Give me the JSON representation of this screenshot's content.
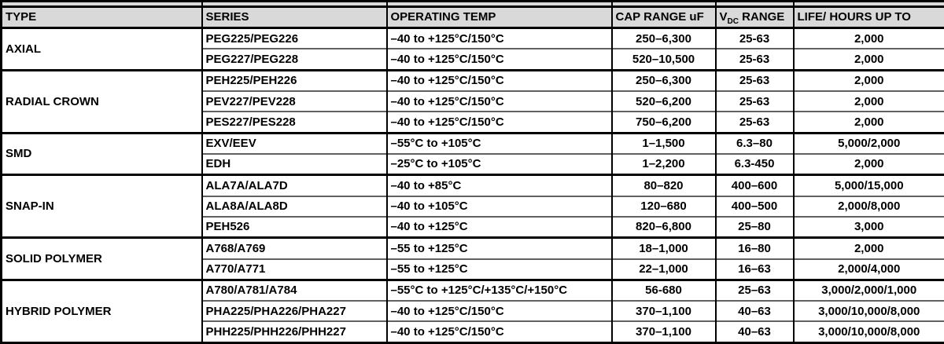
{
  "table": {
    "headers": {
      "type": "TYPE",
      "series": "SERIES",
      "temp": "OPERATING TEMP",
      "cap": "CAP RANGE uF",
      "vdc": {
        "prefix": "V",
        "sub": "DC",
        "suffix": " RANGE"
      },
      "life": "LIFE/ HOURS UP TO"
    },
    "colors": {
      "header_bg": "#d9d9d9",
      "border": "#000000",
      "row_divider": "#616161"
    },
    "groups": [
      {
        "type": "AXIAL",
        "rows": [
          {
            "series": "PEG225/PEG226",
            "temp": "–40 to +125°C/150°C",
            "cap": "250–6,300",
            "vdc": "25-63",
            "life": "2,000"
          },
          {
            "series": "PEG227/PEG228",
            "temp": "–40 to +125°C/150°C",
            "cap": "520–10,500",
            "vdc": "25-63",
            "life": "2,000"
          }
        ]
      },
      {
        "type": "RADIAL CROWN",
        "rows": [
          {
            "series": "PEH225/PEH226",
            "temp": "–40 to +125°C/150°C",
            "cap": "250–6,300",
            "vdc": "25-63",
            "life": "2,000"
          },
          {
            "series": "PEV227/PEV228",
            "temp": "–40 to +125°C/150°C",
            "cap": "520–6,200",
            "vdc": "25-63",
            "life": "2,000"
          },
          {
            "series": "PES227/PES228",
            "temp": "–40 to +125°C/150°C",
            "cap": "750–6,200",
            "vdc": "25-63",
            "life": "2,000"
          }
        ]
      },
      {
        "type": "SMD",
        "rows": [
          {
            "series": "EXV/EEV",
            "temp": "–55°C to +105°C",
            "cap": "1–1,500",
            "vdc": "6.3–80",
            "life": "5,000/2,000"
          },
          {
            "series": "EDH",
            "temp": "–25°C to +105°C",
            "cap": "1–2,200",
            "vdc": "6.3-450",
            "life": "2,000"
          }
        ]
      },
      {
        "type": "SNAP-IN",
        "rows": [
          {
            "series": "ALA7A/ALA7D",
            "temp": "–40 to +85°C",
            "cap": "80–820",
            "vdc": "400–600",
            "life": "5,000/15,000"
          },
          {
            "series": "ALA8A/ALA8D",
            "temp": "–40 to +105°C",
            "cap": "120–680",
            "vdc": "400–500",
            "life": "2,000/8,000"
          },
          {
            "series": "PEH526",
            "temp": "–40 to +125°C",
            "cap": "820–6,800",
            "vdc": "25–80",
            "life": "3,000"
          }
        ]
      },
      {
        "type": "SOLID POLYMER",
        "rows": [
          {
            "series": "A768/A769",
            "temp": "–55 to +125°C",
            "cap": "18–1,000",
            "vdc": "16–80",
            "life": "2,000"
          },
          {
            "series": "A770/A771",
            "temp": "–55 to +125°C",
            "cap": "22–1,000",
            "vdc": "16–63",
            "life": "2,000/4,000"
          }
        ]
      },
      {
        "type": "HYBRID POLYMER",
        "rows": [
          {
            "series": "A780/A781/A784",
            "temp": "–55°C to +125°C/+135°C/+150°C",
            "cap": "56-680",
            "vdc": "25–63",
            "life": "3,000/2,000/1,000"
          },
          {
            "series": "PHA225/PHA226/PHA227",
            "temp": "–40 to +125°C/150°C",
            "cap": "370–1,100",
            "vdc": "40–63",
            "life": "3,000/10,000/8,000"
          },
          {
            "series": "PHH225/PHH226/PHH227",
            "temp": "–40 to +125°C/150°C",
            "cap": "370–1,100",
            "vdc": "40–63",
            "life": "3,000/10,000/8,000"
          }
        ]
      }
    ]
  }
}
